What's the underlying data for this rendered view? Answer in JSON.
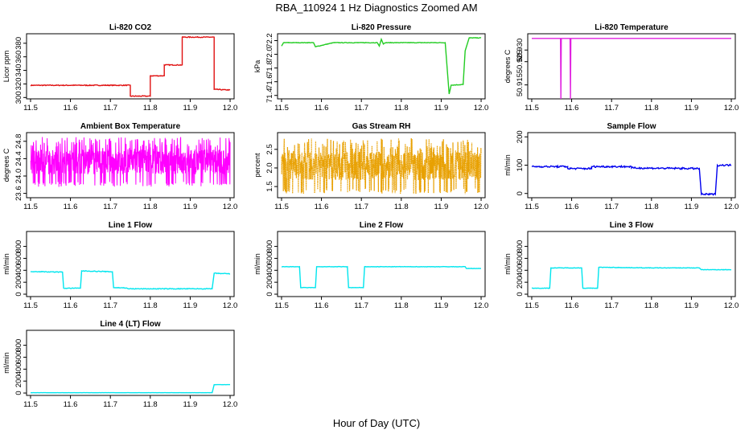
{
  "figure": {
    "title": "RBA_110924  1 Hz Diagnostics Zoomed AM",
    "xlabel": "Hour of Day (UTC)"
  },
  "chart_data": [
    {
      "type": "line",
      "title": "Li-820 CO2",
      "ylabel": "Licor ppm",
      "color": "#e01010",
      "xlim": [
        11.49,
        12.01
      ],
      "ylim": [
        298,
        394
      ],
      "xticks": [
        "11.5",
        "11.6",
        "11.7",
        "11.8",
        "11.9",
        "12.0"
      ],
      "yticks": [
        "300",
        "320",
        "340",
        "360",
        "380"
      ],
      "noise": 0.6,
      "series": [
        {
          "x": [
            11.5,
            11.75,
            11.75,
            11.8,
            11.8,
            11.835,
            11.835,
            11.88,
            11.88,
            11.96,
            11.96,
            12.0
          ],
          "y": [
            318,
            318,
            302,
            302,
            332,
            332,
            348,
            348,
            389,
            389,
            312,
            311
          ]
        }
      ]
    },
    {
      "type": "line",
      "title": "Li-820 Pressure",
      "ylabel": "kPa",
      "color": "#22cc22",
      "xlim": [
        11.49,
        12.01
      ],
      "ylim": [
        71.35,
        72.3
      ],
      "xticks": [
        "11.5",
        "11.6",
        "11.7",
        "11.8",
        "11.9",
        "12.0"
      ],
      "yticks": [
        "71.4",
        "71.6",
        "71.8",
        "72.0",
        "72.2"
      ],
      "noise": 0.004,
      "series": [
        {
          "x": [
            11.5,
            11.505,
            11.58,
            11.585,
            11.63,
            11.74,
            11.745,
            11.75,
            11.755,
            11.76,
            11.91,
            11.92,
            11.925,
            11.955,
            11.96,
            11.97,
            12.0
          ],
          "y": [
            72.12,
            72.17,
            72.17,
            72.11,
            72.17,
            72.17,
            72.12,
            72.22,
            72.15,
            72.17,
            72.17,
            71.42,
            71.55,
            71.56,
            72.05,
            72.24,
            72.24
          ]
        }
      ]
    },
    {
      "type": "line",
      "title": "Li-820 Temperature",
      "ylabel": "degrees C",
      "color": "#e020e0",
      "xlim": [
        11.49,
        12.01
      ],
      "ylim": [
        50.909,
        50.937
      ],
      "xticks": [
        "11.5",
        "11.6",
        "11.7",
        "11.8",
        "11.9",
        "12.0"
      ],
      "yticks": [
        "50.915",
        "50.925",
        "50.930"
      ],
      "noise": 0,
      "series": [
        {
          "x": [
            11.5,
            11.572,
            11.573,
            11.574,
            11.596,
            11.597,
            11.598,
            12.0
          ],
          "y": [
            50.935,
            50.935,
            50.909,
            50.935,
            50.935,
            50.909,
            50.935,
            50.935
          ]
        }
      ]
    },
    {
      "type": "line",
      "title": "Ambient Box Temperature",
      "ylabel": "degrees C",
      "color": "#ff00ff",
      "xlim": [
        11.49,
        12.01
      ],
      "ylim": [
        23.5,
        25.0
      ],
      "xticks": [
        "11.5",
        "11.6",
        "11.7",
        "11.8",
        "11.9",
        "12.0"
      ],
      "yticks": [
        "23.6",
        "24.0",
        "24.4",
        "24.8"
      ],
      "noise": 0,
      "series": [
        {
          "x": [
            11.5,
            11.6,
            11.7,
            11.8,
            11.9,
            11.96,
            12.0
          ],
          "y": [
            24.2,
            24.25,
            24.2,
            24.2,
            24.15,
            24.0,
            24.1
          ]
        }
      ],
      "band": {
        "lo": 23.75,
        "hi": 24.9
      }
    },
    {
      "type": "scatter",
      "title": "Gas Stream RH",
      "ylabel": "percent",
      "color": "#e8a000",
      "xlim": [
        11.49,
        12.01
      ],
      "ylim": [
        1.2,
        2.95
      ],
      "xticks": [
        "11.5",
        "11.6",
        "11.7",
        "11.8",
        "11.9",
        "12.0"
      ],
      "yticks": [
        "1.5",
        "2.0",
        "2.5"
      ],
      "noise": 0,
      "series": [
        {
          "x": [
            11.5,
            11.6,
            11.7,
            11.8,
            11.9,
            12.0
          ],
          "y": [
            1.95,
            1.9,
            1.95,
            1.9,
            1.85,
            1.9
          ]
        }
      ],
      "band": {
        "lo": 1.3,
        "hi": 2.8
      }
    },
    {
      "type": "line",
      "title": "Sample Flow",
      "ylabel": "ml/min",
      "color": "#0000ee",
      "xlim": [
        11.49,
        12.01
      ],
      "ylim": [
        -15,
        215
      ],
      "xticks": [
        "11.5",
        "11.6",
        "11.7",
        "11.8",
        "11.9",
        "12.0"
      ],
      "yticks": [
        "0",
        "100",
        "200"
      ],
      "noise": 3,
      "series": [
        {
          "x": [
            11.5,
            11.59,
            11.59,
            11.65,
            11.65,
            11.75,
            11.75,
            11.92,
            11.925,
            11.96,
            11.965,
            12.0
          ],
          "y": [
            95,
            95,
            88,
            88,
            95,
            95,
            90,
            88,
            -3,
            -3,
            100,
            100
          ]
        }
      ]
    },
    {
      "type": "line",
      "title": "Line 1 Flow",
      "ylabel": "ml/min",
      "color": "#00e5ee",
      "xlim": [
        11.49,
        12.01
      ],
      "ylim": [
        -40,
        1050
      ],
      "xticks": [
        "11.5",
        "11.6",
        "11.7",
        "11.8",
        "11.9",
        "12.0"
      ],
      "yticks": [
        "0",
        "200",
        "400",
        "600",
        "800"
      ],
      "noise": 6,
      "series": [
        {
          "x": [
            11.5,
            11.58,
            11.583,
            11.625,
            11.628,
            11.705,
            11.708,
            11.74,
            11.745,
            11.955,
            11.96,
            12.0
          ],
          "y": [
            380,
            370,
            100,
            100,
            390,
            375,
            110,
            105,
            90,
            90,
            350,
            340
          ]
        }
      ]
    },
    {
      "type": "line",
      "title": "Line 2 Flow",
      "ylabel": "ml/min",
      "color": "#00e5ee",
      "xlim": [
        11.49,
        12.01
      ],
      "ylim": [
        -40,
        1050
      ],
      "xticks": [
        "11.5",
        "11.6",
        "11.7",
        "11.8",
        "11.9",
        "12.0"
      ],
      "yticks": [
        "0",
        "200",
        "400",
        "600",
        "800"
      ],
      "noise": 3,
      "series": [
        {
          "x": [
            11.5,
            11.545,
            11.548,
            11.585,
            11.588,
            11.665,
            11.668,
            11.705,
            11.708,
            11.96,
            11.963,
            12.0
          ],
          "y": [
            460,
            460,
            110,
            110,
            460,
            460,
            110,
            110,
            460,
            460,
            430,
            430
          ]
        }
      ]
    },
    {
      "type": "line",
      "title": "Line 3 Flow",
      "ylabel": "ml/min",
      "color": "#00e5ee",
      "xlim": [
        11.49,
        12.01
      ],
      "ylim": [
        -40,
        1050
      ],
      "xticks": [
        "11.5",
        "11.6",
        "11.7",
        "11.8",
        "11.9",
        "12.0"
      ],
      "yticks": [
        "0",
        "200",
        "400",
        "600",
        "800"
      ],
      "noise": 4,
      "series": [
        {
          "x": [
            11.5,
            11.545,
            11.548,
            11.625,
            11.628,
            11.665,
            11.668,
            11.8,
            11.92,
            11.925,
            12.0
          ],
          "y": [
            100,
            100,
            440,
            440,
            100,
            100,
            450,
            440,
            440,
            410,
            410
          ]
        }
      ]
    },
    {
      "type": "line",
      "title": "Line 4 (LT) Flow",
      "ylabel": "ml/min",
      "color": "#00e5ee",
      "xlim": [
        11.49,
        12.01
      ],
      "ylim": [
        -40,
        1050
      ],
      "xticks": [
        "11.5",
        "11.6",
        "11.7",
        "11.8",
        "11.9",
        "12.0"
      ],
      "yticks": [
        "0",
        "200",
        "400",
        "600",
        "800"
      ],
      "noise": 1,
      "series": [
        {
          "x": [
            11.5,
            11.955,
            11.96,
            12.0
          ],
          "y": [
            5,
            5,
            140,
            140
          ]
        }
      ]
    }
  ]
}
